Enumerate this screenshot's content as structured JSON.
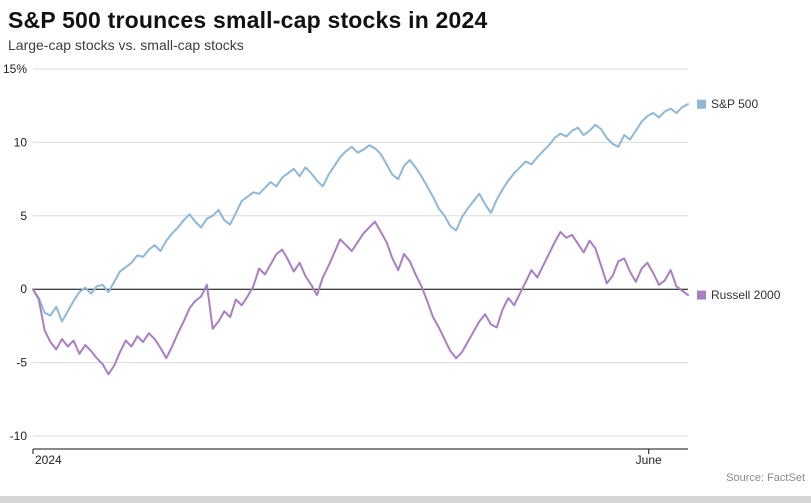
{
  "chart_data": {
    "type": "line",
    "title": "S&P 500 trounces small-cap stocks in 2024",
    "subtitle": "Large-cap stocks vs. small-cap stocks",
    "xlabel": "",
    "ylabel": "",
    "ylim": [
      -10,
      15
    ],
    "grid": true,
    "zero_line": true,
    "legend_position": "right of line ends",
    "y_ticks": [
      {
        "value": 15,
        "label": "15%"
      },
      {
        "value": 10,
        "label": "10"
      },
      {
        "value": 5,
        "label": "5"
      },
      {
        "value": 0,
        "label": "0"
      },
      {
        "value": -5,
        "label": "-5"
      },
      {
        "value": -10,
        "label": "-10"
      }
    ],
    "x_ticks": [
      {
        "label": "2024",
        "frac": 0.0,
        "anchor": "start"
      },
      {
        "label": "June",
        "frac": 0.94,
        "anchor": "middle"
      }
    ],
    "series": [
      {
        "name": "S&P 500",
        "color": "#8fb8d8",
        "values": [
          0,
          -0.6,
          -1.6,
          -1.8,
          -1.2,
          -2.2,
          -1.5,
          -0.8,
          -0.2,
          0.1,
          -0.3,
          0.2,
          0.3,
          -0.2,
          0.5,
          1.2,
          1.5,
          1.8,
          2.3,
          2.2,
          2.7,
          3.0,
          2.6,
          3.3,
          3.8,
          4.2,
          4.7,
          5.1,
          4.6,
          4.2,
          4.8,
          5.0,
          5.4,
          4.7,
          4.4,
          5.2,
          6.0,
          6.3,
          6.6,
          6.5,
          6.9,
          7.3,
          7.0,
          7.6,
          7.9,
          8.2,
          7.7,
          8.3,
          7.9,
          7.4,
          7.0,
          7.8,
          8.4,
          9.0,
          9.4,
          9.7,
          9.3,
          9.5,
          9.8,
          9.6,
          9.2,
          8.5,
          7.8,
          7.5,
          8.4,
          8.8,
          8.3,
          7.7,
          7.0,
          6.3,
          5.5,
          5.0,
          4.3,
          4.0,
          4.9,
          5.5,
          6.0,
          6.5,
          5.8,
          5.2,
          6.1,
          6.8,
          7.4,
          7.9,
          8.3,
          8.7,
          8.5,
          9.0,
          9.4,
          9.8,
          10.3,
          10.6,
          10.4,
          10.8,
          11.0,
          10.5,
          10.8,
          11.2,
          10.9,
          10.3,
          9.9,
          9.7,
          10.5,
          10.2,
          10.8,
          11.4,
          11.8,
          12.0,
          11.7,
          12.1,
          12.3,
          12.0,
          12.4,
          12.6
        ]
      },
      {
        "name": "Russell 2000",
        "color": "#a97fc4",
        "values": [
          0,
          -0.7,
          -2.8,
          -3.6,
          -4.1,
          -3.4,
          -3.9,
          -3.5,
          -4.4,
          -3.8,
          -4.2,
          -4.7,
          -5.1,
          -5.8,
          -5.2,
          -4.3,
          -3.5,
          -3.9,
          -3.2,
          -3.6,
          -3.0,
          -3.4,
          -4.0,
          -4.7,
          -3.9,
          -3.0,
          -2.2,
          -1.3,
          -0.8,
          -0.5,
          0.3,
          -2.7,
          -2.2,
          -1.5,
          -1.9,
          -0.7,
          -1.1,
          -0.5,
          0.2,
          1.4,
          1.0,
          1.7,
          2.4,
          2.7,
          2.0,
          1.2,
          1.8,
          0.9,
          0.3,
          -0.4,
          0.8,
          1.6,
          2.5,
          3.4,
          3.0,
          2.6,
          3.2,
          3.8,
          4.2,
          4.6,
          3.9,
          3.2,
          2.1,
          1.3,
          2.4,
          1.9,
          1.0,
          0.2,
          -0.8,
          -1.9,
          -2.6,
          -3.4,
          -4.2,
          -4.7,
          -4.3,
          -3.6,
          -2.9,
          -2.2,
          -1.7,
          -2.4,
          -2.6,
          -1.4,
          -0.6,
          -1.1,
          -0.3,
          0.5,
          1.3,
          0.8,
          1.6,
          2.4,
          3.2,
          3.9,
          3.5,
          3.7,
          3.1,
          2.5,
          3.3,
          2.8,
          1.6,
          0.4,
          0.9,
          1.9,
          2.1,
          1.2,
          0.5,
          1.4,
          1.8,
          1.1,
          0.3,
          0.6,
          1.3,
          0.2,
          -0.1,
          -0.4
        ]
      }
    ]
  },
  "footer": {
    "source": "Source: FactSet"
  }
}
